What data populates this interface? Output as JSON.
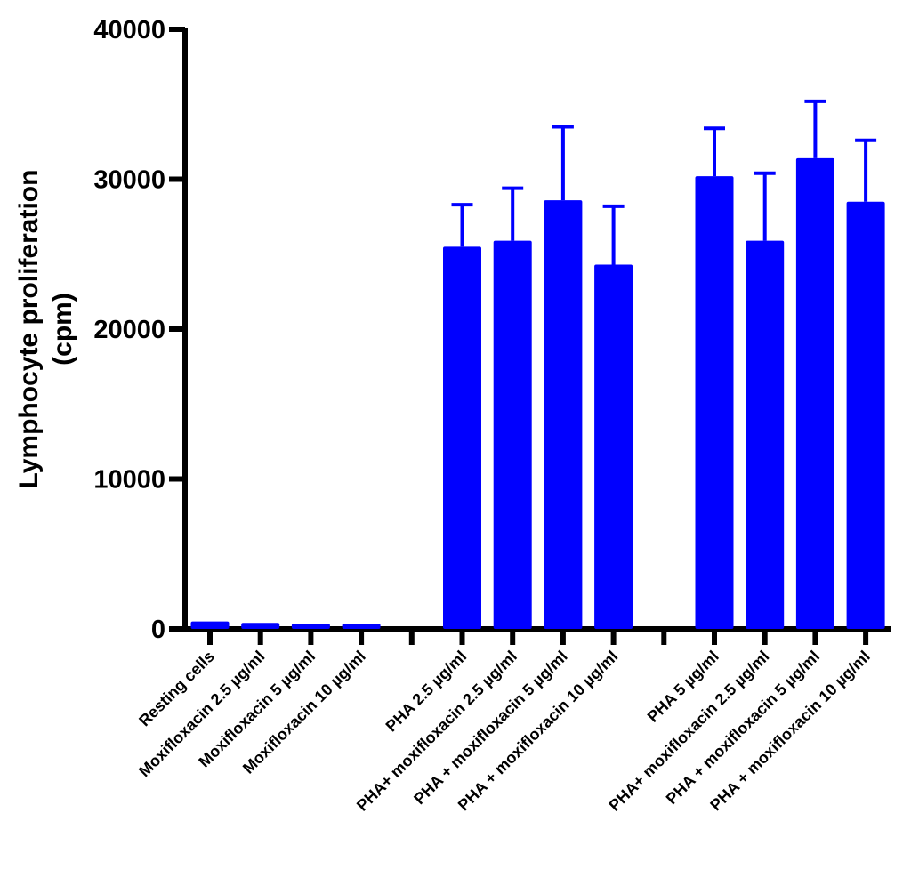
{
  "chart_data": {
    "type": "bar",
    "title": "",
    "xlabel": "",
    "ylabel_line1": "Lymphocyte proliferation",
    "ylabel_line2": "(cpm)",
    "ylim": [
      0,
      40000
    ],
    "yticks": [
      0,
      10000,
      20000,
      30000,
      40000
    ],
    "ytick_labels": [
      "0",
      "10000",
      "20000",
      "30000",
      "40000"
    ],
    "bar_color": "#0000ff",
    "axis_color": "#000000",
    "grid": false,
    "slots": [
      {
        "label": "Resting cells",
        "value": 500,
        "error": 0
      },
      {
        "label": "Moxifloxacin 2.5 µg/ml",
        "value": 400,
        "error": 0
      },
      {
        "label": "Moxifloxacin 5 µg/ml",
        "value": 350,
        "error": 0
      },
      {
        "label": "Moxifloxacin 10 µg/ml",
        "value": 350,
        "error": 0
      },
      null,
      {
        "label": "PHA 2.5 µg/ml",
        "value": 25500,
        "error": 2800
      },
      {
        "label": "PHA+ moxifloxacin 2.5 µg/ml",
        "value": 25900,
        "error": 3500
      },
      {
        "label": "PHA + moxifloxacin 5 µg/ml",
        "value": 28600,
        "error": 4900
      },
      {
        "label": "PHA + moxifloxacin 10 µg/ml",
        "value": 24300,
        "error": 3900
      },
      null,
      {
        "label": "PHA 5 µg/ml",
        "value": 30200,
        "error": 3200
      },
      {
        "label": "PHA+ moxifloxacin 2.5 µg/ml",
        "value": 25900,
        "error": 4500
      },
      {
        "label": "PHA + moxifloxacin 5 µg/ml",
        "value": 31400,
        "error": 3800
      },
      {
        "label": "PHA + moxifloxacin 10 µg/ml",
        "value": 28500,
        "error": 4100
      }
    ]
  }
}
